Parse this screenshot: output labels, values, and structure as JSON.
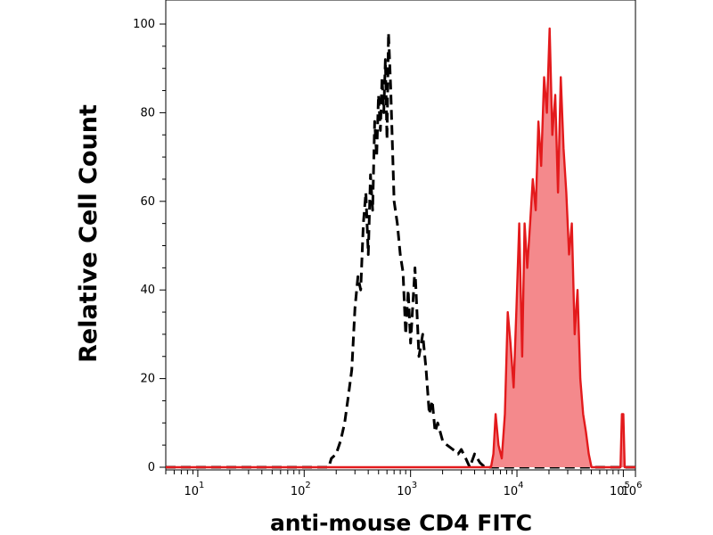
{
  "chart_data": {
    "type": "area",
    "xlabel": "anti-mouse CD4 FITC",
    "ylabel": "Relative Cell Count",
    "x_scale": "log",
    "xlim": [
      5,
      130000
    ],
    "ylim": [
      0,
      100
    ],
    "grid": false,
    "x_ticks": [
      {
        "value": 10,
        "base": "10",
        "exp": "1"
      },
      {
        "value": 100,
        "base": "10",
        "exp": "2"
      },
      {
        "value": 1000,
        "base": "10",
        "exp": "3"
      },
      {
        "value": 10000,
        "base": "10",
        "exp": "4"
      },
      {
        "value": 100000,
        "base": "10",
        "exp": "5"
      },
      {
        "value": 1000000,
        "base": "10",
        "exp": "6"
      }
    ],
    "y_ticks": [
      {
        "value": 0,
        "label": "0"
      },
      {
        "value": 20,
        "label": "20"
      },
      {
        "value": 40,
        "label": "40"
      },
      {
        "value": 60,
        "label": "60"
      },
      {
        "value": 80,
        "label": "80"
      },
      {
        "value": 100,
        "label": "100"
      }
    ],
    "series": [
      {
        "style": "dashed",
        "color": "#000000",
        "fill": "none",
        "points": [
          [
            5,
            0
          ],
          [
            100,
            0
          ],
          [
            170,
            0
          ],
          [
            180,
            2
          ],
          [
            200,
            3
          ],
          [
            220,
            6
          ],
          [
            240,
            10
          ],
          [
            260,
            16
          ],
          [
            280,
            22
          ],
          [
            300,
            36
          ],
          [
            320,
            43
          ],
          [
            340,
            40
          ],
          [
            360,
            55
          ],
          [
            380,
            62
          ],
          [
            400,
            48
          ],
          [
            420,
            66
          ],
          [
            440,
            58
          ],
          [
            460,
            78
          ],
          [
            480,
            70
          ],
          [
            500,
            84
          ],
          [
            520,
            76
          ],
          [
            540,
            88
          ],
          [
            560,
            80
          ],
          [
            580,
            92
          ],
          [
            600,
            74
          ],
          [
            620,
            98
          ],
          [
            650,
            86
          ],
          [
            680,
            70
          ],
          [
            700,
            60
          ],
          [
            750,
            55
          ],
          [
            800,
            48
          ],
          [
            850,
            44
          ],
          [
            900,
            30
          ],
          [
            950,
            40
          ],
          [
            1000,
            28
          ],
          [
            1100,
            45
          ],
          [
            1200,
            25
          ],
          [
            1300,
            30
          ],
          [
            1400,
            22
          ],
          [
            1500,
            12
          ],
          [
            1600,
            15
          ],
          [
            1700,
            8
          ],
          [
            1800,
            10
          ],
          [
            2000,
            6
          ],
          [
            2200,
            5
          ],
          [
            2500,
            4
          ],
          [
            2800,
            3
          ],
          [
            3000,
            4
          ],
          [
            3300,
            2
          ],
          [
            3600,
            0
          ],
          [
            4000,
            3
          ],
          [
            4500,
            1
          ],
          [
            5000,
            0
          ],
          [
            130000,
            0
          ]
        ]
      },
      {
        "style": "solid",
        "color": "#e31a1c",
        "fill": "#f4898c",
        "points": [
          [
            5,
            0
          ],
          [
            5700,
            0
          ],
          [
            6000,
            3
          ],
          [
            6300,
            12
          ],
          [
            6700,
            5
          ],
          [
            7200,
            2
          ],
          [
            7700,
            12
          ],
          [
            8200,
            35
          ],
          [
            8700,
            28
          ],
          [
            9300,
            18
          ],
          [
            9900,
            36
          ],
          [
            10500,
            55
          ],
          [
            11200,
            25
          ],
          [
            11800,
            55
          ],
          [
            12500,
            45
          ],
          [
            13300,
            55
          ],
          [
            14100,
            65
          ],
          [
            15000,
            58
          ],
          [
            15900,
            78
          ],
          [
            16900,
            68
          ],
          [
            18000,
            88
          ],
          [
            19100,
            80
          ],
          [
            20300,
            99
          ],
          [
            21500,
            75
          ],
          [
            22900,
            84
          ],
          [
            24300,
            62
          ],
          [
            25800,
            88
          ],
          [
            27400,
            72
          ],
          [
            29100,
            62
          ],
          [
            30900,
            48
          ],
          [
            32800,
            55
          ],
          [
            34900,
            30
          ],
          [
            37100,
            40
          ],
          [
            39400,
            20
          ],
          [
            41900,
            12
          ],
          [
            44500,
            8
          ],
          [
            47300,
            3
          ],
          [
            50200,
            0
          ],
          [
            94000,
            0
          ],
          [
            97000,
            12
          ],
          [
            100000,
            12
          ],
          [
            103000,
            0
          ],
          [
            130000,
            0
          ]
        ]
      }
    ]
  }
}
